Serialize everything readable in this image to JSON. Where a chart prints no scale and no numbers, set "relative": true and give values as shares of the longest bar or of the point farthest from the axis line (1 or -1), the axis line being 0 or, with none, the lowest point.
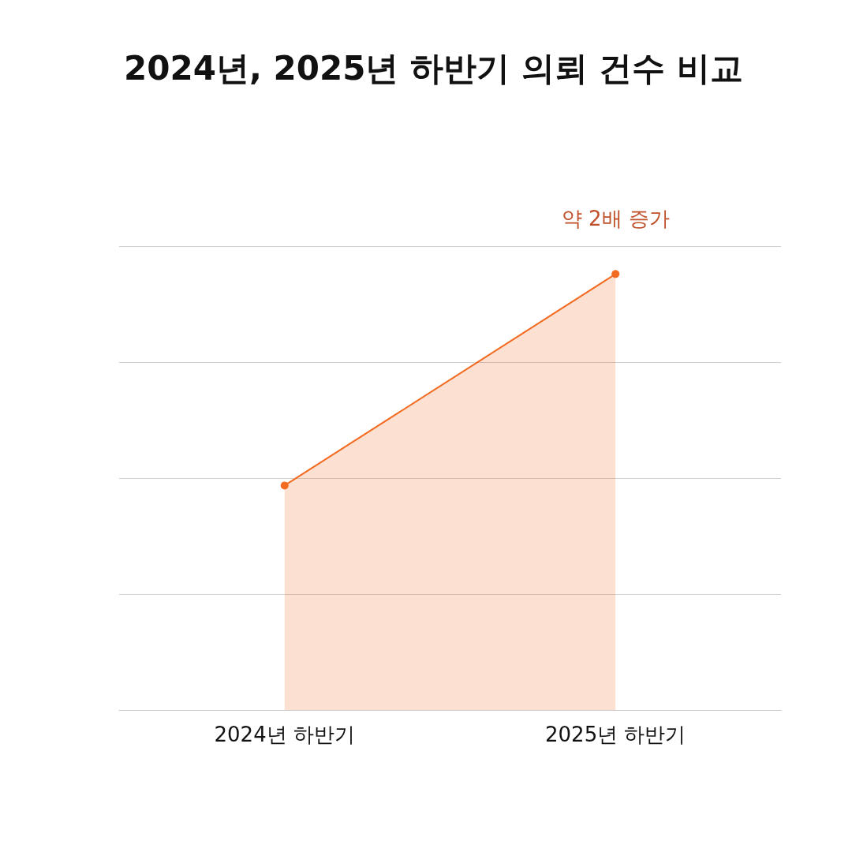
{
  "chart_data": {
    "type": "area",
    "title": "2024년, 2025년 하반기 의뢰 건수 비교",
    "categories": [
      "2024년 하반기",
      "2025년 하반기"
    ],
    "series": [
      {
        "color": "#f26b21",
        "values": [
          0.515,
          1
        ]
      }
    ],
    "relative": true,
    "grid": "y",
    "marker": "circle",
    "line_style": "solid",
    "annotations": [
      {
        "text": "약 2배 증가",
        "x": "2025년 하반기",
        "y": 1
      }
    ]
  }
}
